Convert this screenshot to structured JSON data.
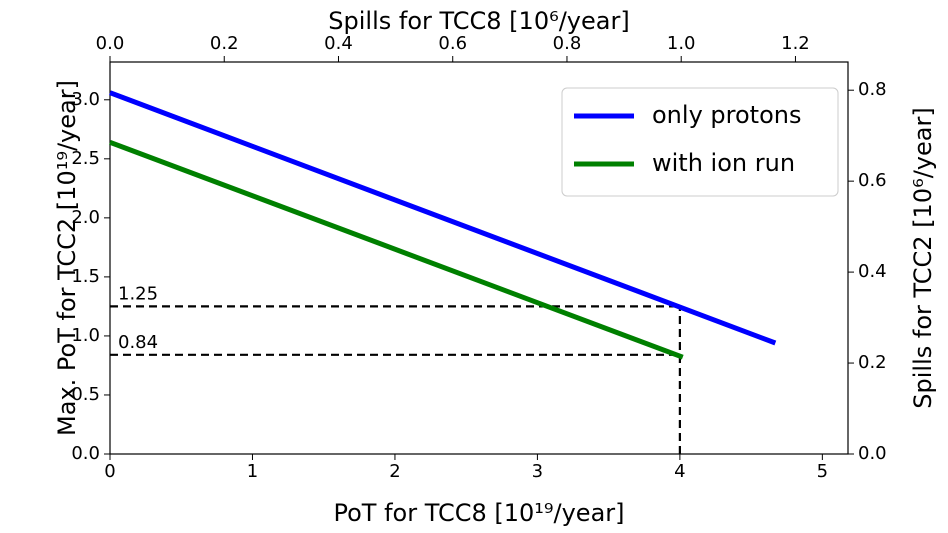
{
  "chart_data": {
    "type": "line",
    "xlabel": "PoT for TCC8 [10¹⁹/year]",
    "ylabel": "Max. PoT for TCC2 [10¹⁹/year]",
    "x2label": "Spills for TCC8 [10⁶/year]",
    "y2label": "Spills for TCC2 [10⁶/year]",
    "xlim": [
      0,
      5.18
    ],
    "xticks": [
      0,
      1,
      2,
      3,
      4,
      5
    ],
    "ylim": [
      0,
      3.32
    ],
    "yticks": [
      {
        "value": 0,
        "label": "0.0"
      },
      0.5,
      {
        "value": 1,
        "label": "1.0"
      },
      1.5,
      {
        "value": 2,
        "label": "2.0"
      },
      2.5,
      {
        "value": 3,
        "label": "3.0"
      }
    ],
    "x2lim": [
      0,
      1.292
    ],
    "x2ticks": [
      {
        "value": 0,
        "label": "0.0"
      },
      0.2,
      0.4,
      0.6,
      0.8,
      {
        "value": 1,
        "label": "1.0"
      },
      1.2
    ],
    "y2lim": [
      0,
      0.862
    ],
    "y2ticks": [
      {
        "value": 0,
        "label": "0.0"
      },
      0.2,
      0.4,
      0.6,
      0.8
    ],
    "legend": "upper right",
    "series": [
      {
        "name": "only protons",
        "color": "#0000ff",
        "x": [
          0,
          4.67
        ],
        "values": [
          3.06,
          0.94
        ]
      },
      {
        "name": "with ion run",
        "color": "#008000",
        "x": [
          0,
          4.02
        ],
        "values": [
          2.64,
          0.82
        ]
      }
    ],
    "guides": [
      {
        "x": [
          0,
          4
        ],
        "values": [
          1.25,
          1.25
        ],
        "label": "1.25"
      },
      {
        "x": [
          0,
          4
        ],
        "values": [
          0.84,
          0.84
        ],
        "label": "0.84"
      },
      {
        "x": [
          4,
          4
        ],
        "values": [
          0,
          1.25
        ]
      }
    ]
  }
}
